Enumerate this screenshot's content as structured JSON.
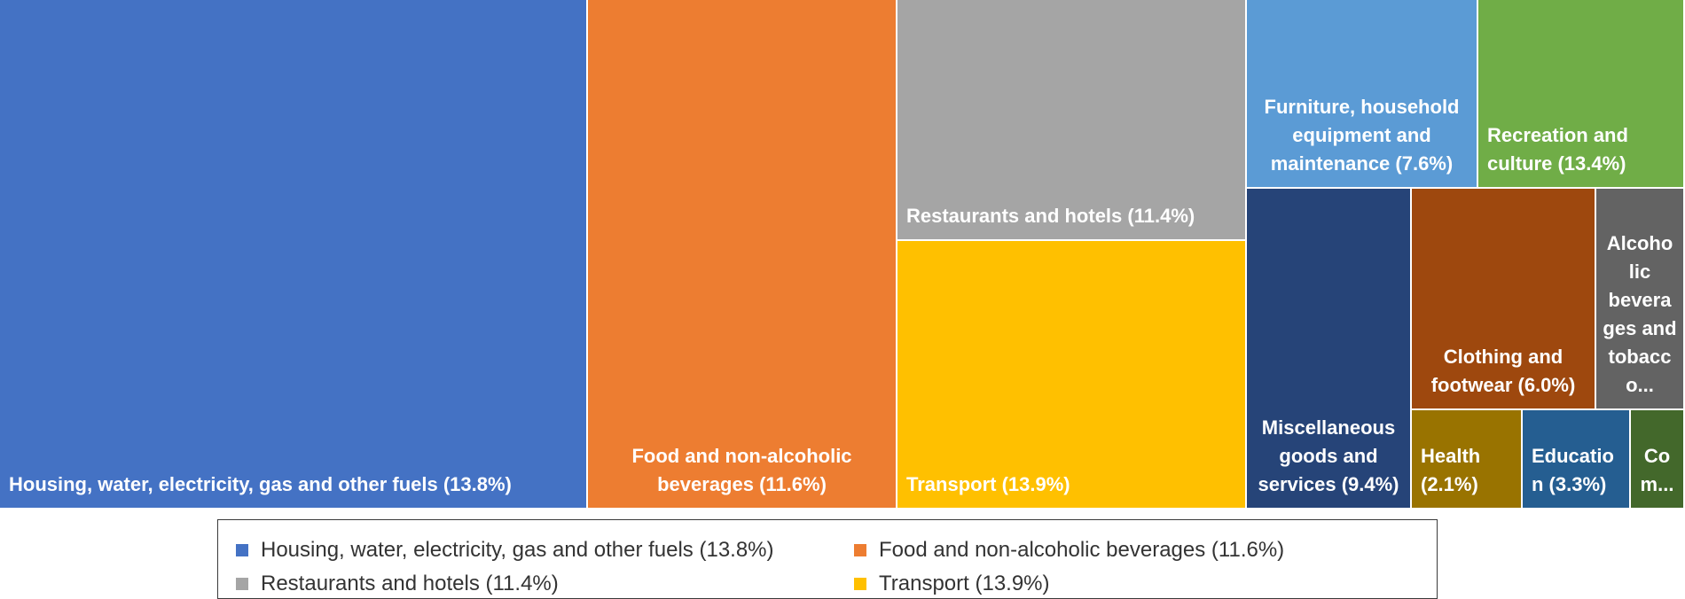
{
  "chart_data": {
    "type": "treemap",
    "title": "",
    "items": [
      {
        "key": "housing",
        "label": "Housing, water, electricity, gas and other fuels (13.8%)",
        "name": "Housing, water, electricity, gas and other fuels",
        "percent": 13.8,
        "color": "#4472C4"
      },
      {
        "key": "food",
        "label": "Food and non-alcoholic beverages (11.6%)",
        "name": "Food and non-alcoholic beverages",
        "percent": 11.6,
        "color": "#ED7D31"
      },
      {
        "key": "restaurants",
        "label": "Restaurants and hotels (11.4%)",
        "name": "Restaurants and hotels",
        "percent": 11.4,
        "color": "#A5A5A5"
      },
      {
        "key": "transport",
        "label": "Transport (13.9%)",
        "name": "Transport",
        "percent": 13.9,
        "color": "#FFC000"
      },
      {
        "key": "furniture",
        "label": "Furniture, household equipment and maintenance (7.6%)",
        "name": "Furniture, household equipment and maintenance",
        "percent": 7.6,
        "color": "#5B9BD5"
      },
      {
        "key": "recreation",
        "label": "Recreation and culture (13.4%)",
        "name": "Recreation and culture",
        "percent": 13.4,
        "color": "#70AD47"
      },
      {
        "key": "misc",
        "label": "Miscellaneous goods and services (9.4%)",
        "name": "Miscellaneous goods and services",
        "percent": 9.4,
        "color": "#264478"
      },
      {
        "key": "clothing",
        "label": "Clothing and footwear (6.0%)",
        "name": "Clothing and footwear",
        "percent": 6.0,
        "color": "#9E480E"
      },
      {
        "key": "alcohol",
        "label": "Alcoho lic bevera ges and tobacc o...",
        "name": "Alcoholic beverages and tobacco",
        "percent": null,
        "color": "#636363"
      },
      {
        "key": "health",
        "label": "Health (2.1%)",
        "name": "Health",
        "percent": 2.1,
        "color": "#997300"
      },
      {
        "key": "education",
        "label": "Educatio n (3.3%)",
        "name": "Education",
        "percent": 3.3,
        "color": "#255E91"
      },
      {
        "key": "comm",
        "label": "Co m...",
        "name": "Communication",
        "percent": null,
        "color": "#43682B"
      }
    ],
    "legend": {
      "position": "bottom",
      "entries": [
        {
          "label": "Housing, water, electricity, gas and other fuels (13.8%)",
          "color": "#4472C4"
        },
        {
          "label": "Food and non-alcoholic beverages (11.6%)",
          "color": "#ED7D31"
        },
        {
          "label": "Restaurants and hotels (11.4%)",
          "color": "#A5A5A5"
        },
        {
          "label": "Transport (13.9%)",
          "color": "#FFC000"
        }
      ]
    }
  }
}
